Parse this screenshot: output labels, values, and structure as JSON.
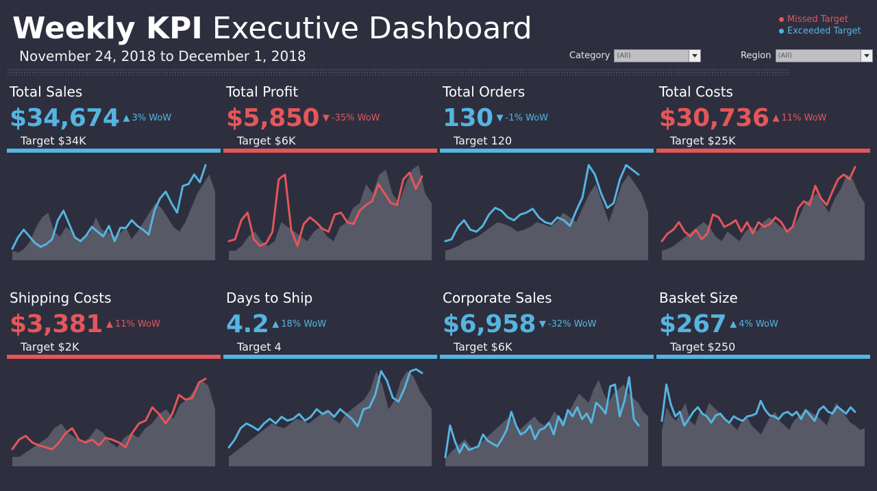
{
  "header": {
    "title_bold": "Weekly KPI",
    "title_light": "Executive Dashboard",
    "date_range": "November 24, 2018 to December 1, 2018"
  },
  "legend": {
    "missed": "Missed Target",
    "exceeded": "Exceeded Target"
  },
  "filters": {
    "category": {
      "label": "Category",
      "value": "(All)"
    },
    "region": {
      "label": "Region",
      "value": "(All)"
    }
  },
  "colors": {
    "background": "#2d2f3f",
    "missed": "#e5565a",
    "exceeded": "#56b4e0",
    "area": "#575966"
  },
  "chart_data": [
    {
      "type": "line",
      "title": "Total Sales",
      "value": "$34,674",
      "direction": "up",
      "wow": "3% WoW",
      "target": "Target $34K",
      "status": "exceeded",
      "line": [
        12,
        24,
        32,
        25,
        18,
        14,
        17,
        22,
        42,
        52,
        38,
        24,
        20,
        26,
        35,
        30,
        25,
        36,
        20,
        34,
        34,
        42,
        36,
        32,
        27,
        52,
        65,
        72,
        60,
        50,
        78,
        80,
        90,
        82,
        100
      ],
      "area": [
        10,
        8,
        12,
        20,
        35,
        45,
        50,
        30,
        25,
        35,
        30,
        20,
        25,
        28,
        45,
        32,
        30,
        25,
        28,
        35,
        22,
        30,
        40,
        50,
        60,
        55,
        45,
        35,
        30,
        40,
        55,
        70,
        80,
        90,
        72
      ]
    },
    {
      "type": "line",
      "title": "Total Profit",
      "value": "$5,850",
      "direction": "down",
      "wow": "-35% WoW",
      "target": "Target $6K",
      "status": "missed",
      "line": [
        20,
        22,
        42,
        50,
        22,
        15,
        18,
        30,
        85,
        90,
        32,
        15,
        38,
        45,
        40,
        33,
        30,
        48,
        50,
        40,
        38,
        52,
        58,
        62,
        80,
        70,
        60,
        58,
        85,
        92,
        75,
        88
      ],
      "area": [
        10,
        10,
        15,
        25,
        30,
        20,
        15,
        20,
        40,
        35,
        30,
        25,
        20,
        30,
        35,
        25,
        20,
        35,
        40,
        55,
        60,
        80,
        70,
        90,
        95,
        70,
        60,
        80,
        95,
        100,
        70,
        60
      ]
    },
    {
      "type": "line",
      "title": "Total Orders",
      "value": "130",
      "direction": "down",
      "wow": "-1% WoW",
      "target": "Target 120",
      "status": "exceeded",
      "line": [
        20,
        22,
        35,
        42,
        32,
        30,
        36,
        48,
        55,
        52,
        45,
        42,
        48,
        50,
        54,
        45,
        40,
        38,
        45,
        42,
        36,
        52,
        66,
        100,
        90,
        70,
        55,
        60,
        85,
        100,
        95,
        90
      ],
      "area": [
        10,
        12,
        15,
        20,
        22,
        25,
        30,
        35,
        40,
        38,
        35,
        30,
        32,
        35,
        40,
        38,
        35,
        40,
        50,
        45,
        40,
        55,
        70,
        80,
        60,
        40,
        60,
        80,
        90,
        80,
        70,
        50
      ]
    },
    {
      "type": "line",
      "title": "Total Costs",
      "value": "$30,736",
      "direction": "up",
      "wow": "11% WoW",
      "target": "Target $25K",
      "status": "missed",
      "line": [
        20,
        28,
        32,
        40,
        30,
        25,
        32,
        22,
        28,
        48,
        45,
        35,
        38,
        42,
        30,
        40,
        28,
        40,
        35,
        38,
        45,
        40,
        30,
        35,
        55,
        62,
        58,
        78,
        65,
        58,
        72,
        85,
        90,
        85,
        98
      ],
      "area": [
        10,
        12,
        15,
        20,
        25,
        30,
        35,
        40,
        35,
        25,
        20,
        30,
        25,
        20,
        30,
        35,
        30,
        40,
        45,
        40,
        35,
        30,
        35,
        45,
        60,
        65,
        70,
        60,
        50,
        65,
        75,
        90,
        85,
        70,
        60
      ]
    },
    {
      "type": "line",
      "title": "Shipping Costs",
      "value": "$3,381",
      "direction": "up",
      "wow": "11% WoW",
      "target": "Target $2K",
      "status": "missed",
      "line": [
        18,
        28,
        32,
        25,
        22,
        20,
        18,
        25,
        35,
        40,
        28,
        25,
        28,
        22,
        30,
        28,
        25,
        20,
        35,
        45,
        48,
        62,
        55,
        45,
        55,
        75,
        70,
        72,
        88,
        92
      ],
      "area": [
        10,
        10,
        15,
        20,
        25,
        30,
        40,
        45,
        35,
        30,
        25,
        30,
        40,
        35,
        25,
        20,
        30,
        35,
        30,
        40,
        45,
        55,
        60,
        50,
        65,
        70,
        80,
        90,
        85,
        60
      ]
    },
    {
      "type": "line",
      "title": "Days to Ship",
      "value": "4.2",
      "direction": "up",
      "wow": "18% WoW",
      "target": "Target 4",
      "status": "exceeded",
      "line": [
        20,
        28,
        40,
        45,
        42,
        38,
        45,
        50,
        45,
        52,
        48,
        50,
        55,
        48,
        52,
        60,
        55,
        58,
        52,
        60,
        55,
        50,
        42,
        60,
        62,
        75,
        100,
        90,
        72,
        68,
        82,
        100,
        102,
        98
      ],
      "area": [
        10,
        15,
        20,
        25,
        30,
        35,
        40,
        45,
        42,
        40,
        45,
        50,
        48,
        45,
        50,
        55,
        60,
        50,
        45,
        55,
        60,
        65,
        70,
        80,
        100,
        85,
        60,
        70,
        90,
        100,
        95,
        80,
        70,
        60
      ]
    },
    {
      "type": "line",
      "title": "Corporate Sales",
      "value": "$6,958",
      "direction": "down",
      "wow": "-32% WoW",
      "target": "Target $6K",
      "status": "exceeded",
      "line": [
        10,
        45,
        28,
        15,
        25,
        18,
        20,
        22,
        35,
        28,
        25,
        22,
        30,
        40,
        60,
        45,
        35,
        38,
        45,
        30,
        40,
        42,
        48,
        35,
        55,
        45,
        62,
        55,
        65,
        52,
        58,
        48,
        70,
        65,
        58,
        88,
        90,
        55,
        72,
        98,
        52,
        45
      ],
      "area": [
        8,
        15,
        20,
        25,
        30,
        22,
        18,
        25,
        30,
        35,
        40,
        45,
        50,
        55,
        48,
        40,
        45,
        50,
        55,
        48,
        45,
        50,
        60,
        55,
        50,
        60,
        70,
        80,
        75,
        70,
        85,
        95,
        80,
        70,
        80,
        85,
        90,
        80,
        75,
        70,
        60,
        55
      ],
      "ylim": [
        0,
        110
      ]
    },
    {
      "type": "line",
      "title": "Basket Size",
      "value": "$267",
      "direction": "up",
      "wow": "4% WoW",
      "target": "Target $250",
      "status": "exceeded",
      "line": [
        50,
        90,
        68,
        55,
        60,
        45,
        52,
        60,
        65,
        58,
        55,
        48,
        56,
        58,
        52,
        48,
        55,
        52,
        50,
        55,
        56,
        58,
        72,
        62,
        56,
        55,
        52,
        58,
        60,
        56,
        60,
        52,
        62,
        56,
        50,
        62,
        66,
        60,
        58,
        66,
        62,
        58,
        65,
        60
      ],
      "area": [
        40,
        65,
        55,
        50,
        60,
        70,
        50,
        45,
        60,
        55,
        70,
        65,
        60,
        55,
        50,
        45,
        40,
        50,
        55,
        45,
        40,
        35,
        45,
        55,
        60,
        50,
        45,
        40,
        50,
        55,
        60,
        62,
        58,
        55,
        50,
        45,
        60,
        70,
        62,
        55,
        48,
        45,
        40,
        42
      ],
      "ylim": [
        0,
        110
      ]
    }
  ]
}
